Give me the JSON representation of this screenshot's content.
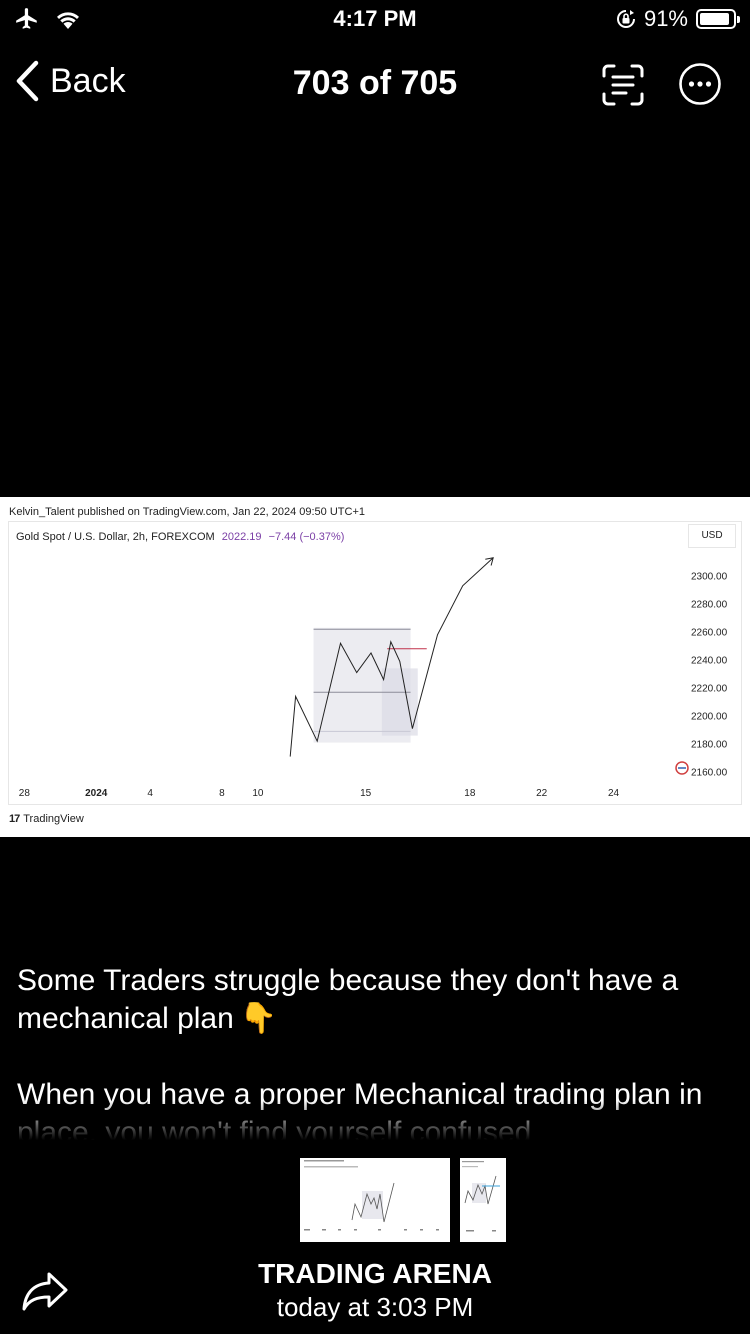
{
  "status_bar": {
    "time": "4:17 PM",
    "battery_percent": "91%",
    "battery_level": 0.91
  },
  "nav": {
    "back_label": "Back",
    "title": "703 of 705"
  },
  "chart_image": {
    "publisher_line": "Kelvin_Talent published on TradingView.com, Jan 22, 2024 09:50 UTC+1",
    "symbol_line": "Gold Spot / U.S. Dollar, 2h, FOREXCOM",
    "price": "2022.19",
    "change": "−7.44 (−0.37%)",
    "currency": "USD",
    "logo_text": "TradingView"
  },
  "chart_data": {
    "type": "line",
    "title": "Gold Spot / U.S. Dollar, 2h, FOREXCOM",
    "x_ticks": [
      {
        "label": "28",
        "x": 28,
        "bold": false
      },
      {
        "label": "2024",
        "x": 32,
        "bold": true
      },
      {
        "label": "4",
        "x": 35,
        "bold": false
      },
      {
        "label": "8",
        "x": 39,
        "bold": false
      },
      {
        "label": "10",
        "x": 41,
        "bold": false
      },
      {
        "label": "15",
        "x": 47,
        "bold": false
      },
      {
        "label": "18",
        "x": 52.8,
        "bold": false
      },
      {
        "label": "22",
        "x": 56.8,
        "bold": false
      },
      {
        "label": "24",
        "x": 60.8,
        "bold": false
      }
    ],
    "y_ticks": [
      "2300.00",
      "2280.00",
      "2260.00",
      "2240.00",
      "2220.00",
      "2200.00",
      "2180.00",
      "2160.00"
    ],
    "ylim": [
      2150,
      2320
    ],
    "xlim": [
      27.2,
      64.5
    ],
    "series": [
      {
        "name": "price path",
        "x": [
          42.8,
          43.1,
          44.3,
          45.6,
          46.5,
          47.3,
          48.0,
          48.4,
          48.9,
          49.6,
          51.0,
          52.4,
          54.1
        ],
        "y": [
          2171,
          2214,
          2182,
          2252,
          2231,
          2245,
          2226,
          2253,
          2239,
          2191,
          2258,
          2293,
          2313
        ]
      }
    ],
    "zones": [
      {
        "x_range": [
          44.1,
          49.5
        ],
        "y_range": [
          2181,
          2263
        ]
      },
      {
        "x_range": [
          47.9,
          49.9
        ],
        "y_range": [
          2186,
          2234
        ]
      }
    ],
    "levels": [
      {
        "value": 2262,
        "x_range": [
          44.1,
          49.5
        ],
        "style": "dark"
      },
      {
        "value": 2217,
        "x_range": [
          44.1,
          49.5
        ],
        "style": "dark"
      },
      {
        "value": 2189,
        "x_range": [
          44.1,
          49.5
        ],
        "style": "light"
      },
      {
        "value": 2248,
        "x_range": [
          48.2,
          50.4
        ],
        "style": "red"
      }
    ]
  },
  "caption": {
    "line1": "Some Traders struggle because they don't have a mechanical  plan",
    "emoji": "👇",
    "line2": "When you have a proper Mechanical trading plan in place, you won't find yourself confused"
  },
  "footer": {
    "sender": "TRADING ARENA",
    "sent_at": "today at 3:03 PM"
  },
  "icons": {
    "airplane": "airplane-icon",
    "wifi": "wifi-icon",
    "orientation_lock": "orientation-lock-icon",
    "battery": "battery-icon",
    "back": "chevron-left-icon",
    "live_text": "live-text-icon",
    "more": "ellipsis-circle-icon",
    "share": "share-icon"
  }
}
